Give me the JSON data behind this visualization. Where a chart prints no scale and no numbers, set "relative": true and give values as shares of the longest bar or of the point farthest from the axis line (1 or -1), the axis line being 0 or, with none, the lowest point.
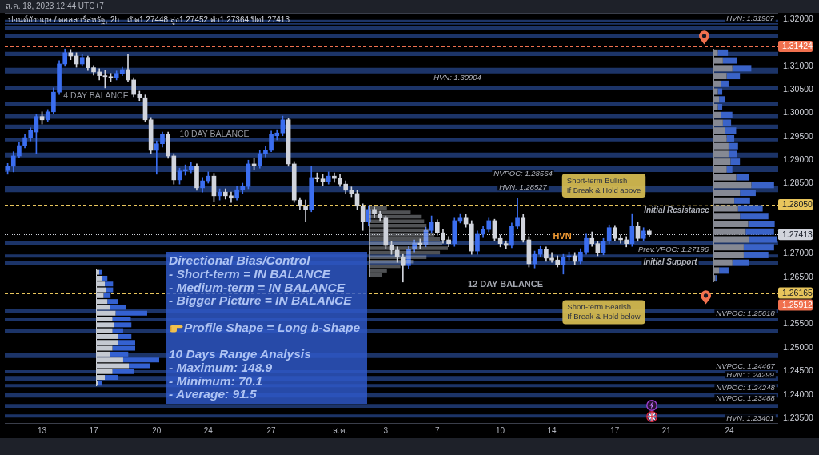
{
  "chart_data": [
    {
      "type": "candlestick",
      "title": "ปอนด์อังกฤษ / ดอลลาร์สหรัฐ, 2h",
      "subtitle": "เปิด1.27448 สูง1.27452 ต่ำ1.27364 ปิด1.27413",
      "categories": [
        null,
        null,
        null,
        null,
        null,
        null,
        "13",
        null,
        null,
        null,
        null,
        null,
        null,
        null,
        null,
        "17",
        null,
        null,
        null,
        null,
        null,
        null,
        null,
        null,
        null,
        null,
        "20",
        null,
        null,
        null,
        null,
        null,
        null,
        null,
        null,
        "24",
        null,
        null,
        null,
        null,
        null,
        null,
        null,
        null,
        null,
        null,
        "27",
        null,
        null,
        null,
        null,
        null,
        null,
        null,
        null,
        null,
        null,
        null,
        "ส.ค.",
        null,
        null,
        null,
        null,
        null,
        null,
        null,
        "3",
        null,
        null,
        null,
        null,
        null,
        null,
        null,
        null,
        "7",
        null,
        null,
        null,
        null,
        null,
        null,
        null,
        null,
        null,
        null,
        "10",
        null,
        null,
        null,
        null,
        null,
        null,
        null,
        null,
        "14",
        null,
        null,
        null,
        null,
        null,
        null,
        null,
        null,
        null,
        null,
        "17",
        null,
        null,
        null,
        null,
        null,
        null,
        null,
        null,
        "21",
        null,
        null,
        null,
        null,
        null,
        null,
        null,
        null,
        null,
        null,
        "24",
        null,
        null,
        null,
        null,
        null,
        null,
        null,
        null
      ],
      "ohlc": [
        [
          1.2878,
          1.2893,
          1.287,
          1.2887
        ],
        [
          1.2887,
          1.2918,
          1.2875,
          1.2909
        ],
        [
          1.2909,
          1.2938,
          1.2906,
          1.2931
        ],
        [
          1.2931,
          1.2955,
          1.2926,
          1.2948
        ],
        [
          1.2948,
          1.2969,
          1.2941,
          1.2964
        ],
        [
          1.296,
          1.2998,
          1.2914,
          1.2993
        ],
        [
          1.2993,
          1.3003,
          1.2977,
          1.2986
        ],
        [
          1.2986,
          1.3008,
          1.2982,
          1.3003
        ],
        [
          1.3003,
          1.3054,
          1.2999,
          1.3045
        ],
        [
          1.3045,
          1.3112,
          1.304,
          1.3105
        ],
        [
          1.3105,
          1.3137,
          1.31,
          1.3129
        ],
        [
          1.3129,
          1.3136,
          1.3114,
          1.3122
        ],
        [
          1.3122,
          1.3129,
          1.3098,
          1.3105
        ],
        [
          1.3105,
          1.3126,
          1.31,
          1.3119
        ],
        [
          1.3119,
          1.3122,
          1.3091,
          1.3097
        ],
        [
          1.3097,
          1.3102,
          1.3081,
          1.3088
        ],
        [
          1.3088,
          1.3095,
          1.3071,
          1.308
        ],
        [
          1.308,
          1.3091,
          1.3054,
          1.3078
        ],
        [
          1.3078,
          1.3085,
          1.3068,
          1.3076
        ],
        [
          1.3076,
          1.309,
          1.3071,
          1.3085
        ],
        [
          1.3085,
          1.3098,
          1.308,
          1.3093
        ],
        [
          1.3093,
          1.3126,
          1.3068,
          1.3071
        ],
        [
          1.3071,
          1.3076,
          1.3035,
          1.304
        ],
        [
          1.304,
          1.3047,
          1.3027,
          1.3033
        ],
        [
          1.3033,
          1.3039,
          1.2981,
          1.2986
        ],
        [
          1.2986,
          1.2991,
          1.2914,
          1.2921
        ],
        [
          1.2921,
          1.2941,
          1.287,
          1.2935
        ],
        [
          1.2935,
          1.296,
          1.2928,
          1.2955
        ],
        [
          1.2955,
          1.296,
          1.2904,
          1.2909
        ],
        [
          1.2909,
          1.2914,
          1.2849,
          1.2858
        ],
        [
          1.2858,
          1.2883,
          1.2849,
          1.2877
        ],
        [
          1.2877,
          1.289,
          1.2868,
          1.288
        ],
        [
          1.288,
          1.2895,
          1.2873,
          1.2887
        ],
        [
          1.2887,
          1.2892,
          1.2836,
          1.2841
        ],
        [
          1.2841,
          1.2863,
          1.2832,
          1.2856
        ],
        [
          1.2856,
          1.2875,
          1.2851,
          1.2866
        ],
        [
          1.2866,
          1.2872,
          1.2812,
          1.2824
        ],
        [
          1.2824,
          1.2839,
          1.2815,
          1.2832
        ],
        [
          1.2832,
          1.2839,
          1.2817,
          1.2824
        ],
        [
          1.2824,
          1.2832,
          1.281,
          1.2819
        ],
        [
          1.2819,
          1.2844,
          1.2815,
          1.2837
        ],
        [
          1.2837,
          1.2851,
          1.2829,
          1.2844
        ],
        [
          1.2844,
          1.29,
          1.2839,
          1.2892
        ],
        [
          1.2892,
          1.2904,
          1.288,
          1.2888
        ],
        [
          1.2888,
          1.2921,
          1.2883,
          1.2914
        ],
        [
          1.2914,
          1.2929,
          1.2907,
          1.2921
        ],
        [
          1.2921,
          1.2962,
          1.2918,
          1.2955
        ],
        [
          1.2952,
          1.2965,
          1.2943,
          1.2958
        ],
        [
          1.2958,
          1.2994,
          1.2952,
          1.2986
        ],
        [
          1.2986,
          1.2989,
          1.2887,
          1.2892
        ],
        [
          1.2892,
          1.2897,
          1.281,
          1.2815
        ],
        [
          1.2815,
          1.282,
          1.2795,
          1.2802
        ],
        [
          1.2802,
          1.2815,
          1.2768,
          1.2795
        ],
        [
          1.2795,
          1.2887,
          1.279,
          1.2863
        ],
        [
          1.2863,
          1.2873,
          1.2853,
          1.286
        ],
        [
          1.286,
          1.287,
          1.2846,
          1.2854
        ],
        [
          1.2854,
          1.2875,
          1.2849,
          1.2866
        ],
        [
          1.2866,
          1.2873,
          1.2853,
          1.2861
        ],
        [
          1.2861,
          1.287,
          1.2844,
          1.2849
        ],
        [
          1.2849,
          1.2856,
          1.2829,
          1.2836
        ],
        [
          1.2836,
          1.2843,
          1.2822,
          1.2829
        ],
        [
          1.2829,
          1.2836,
          1.2795,
          1.2802
        ],
        [
          1.2802,
          1.2807,
          1.275,
          1.2768
        ],
        [
          1.2768,
          1.2803,
          1.2761,
          1.2795
        ],
        [
          1.2795,
          1.28,
          1.2778,
          1.2785
        ],
        [
          1.2785,
          1.2791,
          1.2771,
          1.2778
        ],
        [
          1.2778,
          1.2781,
          1.2711,
          1.2718
        ],
        [
          1.2718,
          1.2727,
          1.2699,
          1.2708
        ],
        [
          1.2708,
          1.2715,
          1.2682,
          1.2693
        ],
        [
          1.2693,
          1.2699,
          1.264,
          1.2675
        ],
        [
          1.2675,
          1.2716,
          1.2669,
          1.271
        ],
        [
          1.271,
          1.273,
          1.2704,
          1.2723
        ],
        [
          1.2723,
          1.2732,
          1.271,
          1.272
        ],
        [
          1.272,
          1.2757,
          1.2715,
          1.275
        ],
        [
          1.275,
          1.2781,
          1.2744,
          1.2768
        ],
        [
          1.2768,
          1.2773,
          1.274,
          1.2745
        ],
        [
          1.2745,
          1.2752,
          1.2723,
          1.273
        ],
        [
          1.273,
          1.2737,
          1.2715,
          1.2722
        ],
        [
          1.2722,
          1.2778,
          1.2716,
          1.2771
        ],
        [
          1.2771,
          1.2786,
          1.2766,
          1.2778
        ],
        [
          1.2778,
          1.2785,
          1.2757,
          1.2764
        ],
        [
          1.2764,
          1.2771,
          1.2699,
          1.2706
        ],
        [
          1.2706,
          1.2749,
          1.2699,
          1.2742
        ],
        [
          1.2742,
          1.2759,
          1.2735,
          1.2752
        ],
        [
          1.2752,
          1.2778,
          1.2747,
          1.2771
        ],
        [
          1.2771,
          1.2774,
          1.2728,
          1.2733
        ],
        [
          1.2733,
          1.274,
          1.2715,
          1.2722
        ],
        [
          1.2722,
          1.2728,
          1.2711,
          1.2718
        ],
        [
          1.2718,
          1.2766,
          1.2713,
          1.2759
        ],
        [
          1.2759,
          1.2819,
          1.2754,
          1.2778
        ],
        [
          1.2778,
          1.2785,
          1.2725,
          1.273
        ],
        [
          1.273,
          1.2737,
          1.2672,
          1.2679
        ],
        [
          1.2679,
          1.2706,
          1.267,
          1.2699
        ],
        [
          1.2699,
          1.2716,
          1.2693,
          1.271
        ],
        [
          1.271,
          1.2715,
          1.2684,
          1.2691
        ],
        [
          1.2691,
          1.2703,
          1.2682,
          1.2687
        ],
        [
          1.2687,
          1.2696,
          1.2672,
          1.2677
        ],
        [
          1.2677,
          1.2699,
          1.2657,
          1.2693
        ],
        [
          1.2693,
          1.2704,
          1.2687,
          1.2696
        ],
        [
          1.2696,
          1.2703,
          1.2677,
          1.2684
        ],
        [
          1.2684,
          1.2711,
          1.2679,
          1.2704
        ],
        [
          1.2704,
          1.2742,
          1.2699,
          1.2733
        ],
        [
          1.2733,
          1.2747,
          1.2716,
          1.2722
        ],
        [
          1.2722,
          1.2727,
          1.2696,
          1.2703
        ],
        [
          1.2703,
          1.2733,
          1.2698,
          1.2727
        ],
        [
          1.2727,
          1.2762,
          1.2722,
          1.2756
        ],
        [
          1.2756,
          1.2761,
          1.2727,
          1.2733
        ],
        [
          1.2733,
          1.274,
          1.2723,
          1.273
        ],
        [
          1.273,
          1.2737,
          1.2715,
          1.2722
        ],
        [
          1.2722,
          1.2786,
          1.2716,
          1.2759
        ],
        [
          1.2759,
          1.2768,
          1.2727,
          1.2733
        ],
        [
          1.2733,
          1.2756,
          1.2728,
          1.2749
        ],
        [
          1.2749,
          1.2752,
          1.2736,
          1.27413
        ],
        null,
        null,
        null,
        null,
        null,
        null,
        null,
        null,
        null,
        null,
        null,
        null,
        null,
        null,
        null,
        null,
        null,
        null,
        null,
        null,
        null,
        null
      ],
      "colors": [
        "#3b6ef0",
        "#3b6ef0",
        "#3b6ef0",
        "#3b6ef0",
        "#3b6ef0",
        "#3b6ef0",
        "#d1d4dc",
        "#3b6ef0",
        "#3b6ef0",
        "#3b6ef0",
        "#3b6ef0",
        "#d1d4dc",
        "#d1d4dc",
        "#3b6ef0",
        "#d1d4dc",
        "#d1d4dc",
        "#d1d4dc",
        "#d1d4dc",
        "#d1d4dc",
        "#3b6ef0",
        "#3b6ef0",
        "#d1d4dc",
        "#d1d4dc",
        "#d1d4dc",
        "#d1d4dc",
        "#d1d4dc",
        "#3b6ef0",
        "#3b6ef0",
        "#d1d4dc",
        "#d1d4dc",
        "#3b6ef0",
        "#3b6ef0",
        "#3b6ef0",
        "#d1d4dc",
        "#3b6ef0",
        "#3b6ef0",
        "#d1d4dc",
        "#3b6ef0",
        "#d1d4dc",
        "#d1d4dc",
        "#3b6ef0",
        "#3b6ef0",
        "#3b6ef0",
        "#d1d4dc",
        "#3b6ef0",
        "#3b6ef0",
        "#3b6ef0",
        "#3b6ef0",
        "#3b6ef0",
        "#d1d4dc",
        "#d1d4dc",
        "#d1d4dc",
        "#d1d4dc",
        "#3b6ef0",
        "#d1d4dc",
        "#d1d4dc",
        "#3b6ef0",
        "#d1d4dc",
        "#d1d4dc",
        "#d1d4dc",
        "#d1d4dc",
        "#d1d4dc",
        "#d1d4dc",
        "#3b6ef0",
        "#d1d4dc",
        "#d1d4dc",
        "#d1d4dc",
        "#d1d4dc",
        "#d1d4dc",
        "#d1d4dc",
        "#3b6ef0",
        "#3b6ef0",
        "#d1d4dc",
        "#3b6ef0",
        "#3b6ef0",
        "#d1d4dc",
        "#d1d4dc",
        "#d1d4dc",
        "#3b6ef0",
        "#3b6ef0",
        "#d1d4dc",
        "#d1d4dc",
        "#3b6ef0",
        "#3b6ef0",
        "#3b6ef0",
        "#d1d4dc",
        "#d1d4dc",
        "#d1d4dc",
        "#3b6ef0",
        "#3b6ef0",
        "#d1d4dc",
        "#d1d4dc",
        "#3b6ef0",
        "#3b6ef0",
        "#d1d4dc",
        "#d1d4dc",
        "#d1d4dc",
        "#3b6ef0",
        "#3b6ef0",
        "#d1d4dc",
        "#3b6ef0",
        "#3b6ef0",
        "#d1d4dc",
        "#d1d4dc",
        "#3b6ef0",
        "#3b6ef0",
        "#d1d4dc",
        "#d1d4dc",
        "#d1d4dc",
        "#3b6ef0",
        "#d1d4dc",
        "#3b6ef0",
        "#d1d4dc",
        null,
        null,
        null,
        null,
        null,
        null,
        null,
        null,
        null,
        null,
        null,
        null,
        null,
        null,
        null,
        null,
        null,
        null,
        null,
        null,
        null,
        null
      ],
      "ylim": [
        1.2338,
        1.3214
      ],
      "yticks": [
        {
          "value": 1.32,
          "label": "1.32000"
        },
        {
          "value": 1.31,
          "label": "1.31000"
        },
        {
          "value": 1.305,
          "label": "1.30500"
        },
        {
          "value": 1.3,
          "label": "1.30000"
        },
        {
          "value": 1.295,
          "label": "1.29500"
        },
        {
          "value": 1.29,
          "label": "1.29000"
        },
        {
          "value": 1.285,
          "label": "1.28500"
        },
        {
          "value": 1.27,
          "label": "1.27000"
        },
        {
          "value": 1.265,
          "label": "1.26500"
        },
        {
          "value": 1.255,
          "label": "1.25500"
        },
        {
          "value": 1.25,
          "label": "1.25000"
        },
        {
          "value": 1.245,
          "label": "1.24500"
        },
        {
          "value": 1.24,
          "label": "1.24000"
        },
        {
          "value": 1.235,
          "label": "1.23500"
        }
      ],
      "bands": [
        {
          "axis": "y",
          "from": 1.3195,
          "to": 1.3199,
          "color": "#1c3468"
        },
        {
          "axis": "y",
          "from": 1.3189,
          "to": 1.3192,
          "color": "#1c3468"
        },
        {
          "axis": "y",
          "from": 1.3177,
          "to": 1.3185,
          "color": "#1c3468"
        },
        {
          "axis": "y",
          "from": 1.316,
          "to": 1.3168,
          "color": "#1c3468"
        },
        {
          "axis": "y",
          "from": 1.3122,
          "to": 1.3131,
          "color": "#1c3468"
        },
        {
          "axis": "y",
          "from": 1.3085,
          "to": 1.3097,
          "color": "#1c3468"
        },
        {
          "axis": "y",
          "from": 1.3049,
          "to": 1.3059,
          "color": "#1c3468"
        },
        {
          "axis": "y",
          "from": 1.3015,
          "to": 1.3025,
          "color": "#1c3468"
        },
        {
          "axis": "y",
          "from": 1.2988,
          "to": 1.2998,
          "color": "#1c3468"
        },
        {
          "axis": "y",
          "from": 1.2967,
          "to": 1.2976,
          "color": "#1c3468"
        },
        {
          "axis": "y",
          "from": 1.294,
          "to": 1.2948,
          "color": "#1c3468"
        },
        {
          "axis": "y",
          "from": 1.2906,
          "to": 1.2916,
          "color": "#1c3468"
        },
        {
          "axis": "y",
          "from": 1.2875,
          "to": 1.2887,
          "color": "#1c3468"
        },
        {
          "axis": "y",
          "from": 1.2832,
          "to": 1.2844,
          "color": "#1c3468"
        },
        {
          "axis": "y",
          "from": 1.2718,
          "to": 1.2727,
          "color": "#1c3468"
        },
        {
          "axis": "y",
          "from": 1.2692,
          "to": 1.2699,
          "color": "#1c3468"
        },
        {
          "axis": "y",
          "from": 1.2677,
          "to": 1.2684,
          "color": "#1c3468"
        },
        {
          "axis": "y",
          "from": 1.2575,
          "to": 1.2582,
          "color": "#1c3468"
        },
        {
          "axis": "y",
          "from": 1.2556,
          "to": 1.2563,
          "color": "#1c3468"
        },
        {
          "axis": "y",
          "from": 1.2532,
          "to": 1.2539,
          "color": "#1c3468"
        },
        {
          "axis": "y",
          "from": 1.2478,
          "to": 1.2488,
          "color": "#1c3468"
        },
        {
          "axis": "y",
          "from": 1.2447,
          "to": 1.2452,
          "color": "#1c3468"
        },
        {
          "axis": "y",
          "from": 1.243,
          "to": 1.244,
          "color": "#1c3468"
        },
        {
          "axis": "y",
          "from": 1.2416,
          "to": 1.2423,
          "color": "#1c3468"
        },
        {
          "axis": "y",
          "from": 1.2394,
          "to": 1.2403,
          "color": "#1c3468"
        },
        {
          "axis": "y",
          "from": 1.2372,
          "to": 1.238,
          "color": "#1c3468"
        },
        {
          "axis": "y",
          "from": 1.2351,
          "to": 1.2358,
          "color": "#1c3468"
        }
      ],
      "ref_lines": [
        {
          "axis": "y",
          "value": 1.31424,
          "label": "1.31424",
          "color": "#f0704e",
          "line_style": "dashed"
        },
        {
          "axis": "y",
          "value": 1.2805,
          "label": "1.28050",
          "color": "#e8c55c",
          "line_style": "dashed"
        },
        {
          "axis": "y",
          "value": 1.27413,
          "label": "1.27413",
          "color": "#d1d4dc",
          "line_style": "dotted"
        },
        {
          "axis": "y",
          "value": 1.26165,
          "label": "1.26165",
          "color": "#e8c55c",
          "line_style": "dashed"
        },
        {
          "axis": "y",
          "value": 1.25912,
          "label": "1.25912",
          "color": "#f0704e",
          "line_style": "dashed"
        }
      ],
      "annotations": [
        "ส.ค. 18, 2023 12:44 UTC+7",
        "Directional Bias/Control\n- Short-term = IN BALANCE\n- Medium-term = IN BALANCE\n- Bigger Picture = IN BALANCE\n\nProfile Shape = Long b-Shape\n\n10 Days Range Analysis\n- Maximum: 148.9\n- Minimum: 70.1\n- Average: 91.5",
        "4 DAY BALANCE",
        "10 DAY BALANCE",
        "12 DAY BALANCE",
        "HVN",
        "HVN: 1.31907",
        "HVN: 1.30904",
        "NVPOC: 1.28564",
        "HVN: 1.28527",
        {
          "text": "Short-term Bullish\nIf Break & Hold above",
          "y": 1.2805
        },
        "Initial Resistance",
        "Prev.VPOC: 1.27196",
        "Initial Support",
        {
          "text": "Short-term Bearish\nIf Break & Hold below",
          "y": 1.26165
        },
        "NVPOC: 1.25618",
        "NVPOC: 1.24467",
        "HVN: 1.24299",
        "NVPOC: 1.24248",
        "NVPOC: 1.23488",
        "HVN: 1.23401"
      ]
    },
    {
      "type": "bar",
      "orientation": "horizontal",
      "stacked": true,
      "relative": true,
      "tick_labels": false,
      "categories": [
        null,
        null,
        null,
        null,
        null,
        null,
        null,
        null,
        null,
        null,
        null,
        null,
        null,
        null,
        null,
        null,
        null,
        null,
        null,
        null,
        null,
        null,
        null,
        null,
        null,
        null,
        null,
        null,
        null,
        null
      ],
      "series": [
        {
          "color": "#868993",
          "values": [
            0.07,
            0.15,
            0.3,
            0.21,
            0.12,
            0.07,
            0.09,
            0.07,
            0.12,
            0.15,
            0.18,
            0.21,
            0.24,
            0.24,
            0.27,
            0.21,
            0.36,
            0.6,
            0.42,
            0.33,
            0.39,
            0.42,
            0.55,
            0.51,
            0.57,
            0.48,
            0.48,
            0.3,
            0.09,
            0.03
          ]
        },
        {
          "color": "#3a63c8",
          "values": [
            0.16,
            0.22,
            0.3,
            0.21,
            0.12,
            0.07,
            0.1,
            0.07,
            0.18,
            0.13,
            0.18,
            0.12,
            0.15,
            0.13,
            0.15,
            0.09,
            0.21,
            0.36,
            0.25,
            0.25,
            0.39,
            0.45,
            0.42,
            0.45,
            0.43,
            0.48,
            0.39,
            0.27,
            0.15,
            0.03
          ]
        }
      ]
    },
    {
      "type": "bar",
      "orientation": "horizontal",
      "relative": true,
      "tick_labels": false,
      "categories": [
        null,
        null,
        null,
        null,
        null,
        null,
        null,
        null,
        null,
        null,
        null,
        null,
        null,
        null,
        null,
        null
      ],
      "color": "#c8ccd4",
      "values": [
        0.23,
        0.53,
        0.67,
        0.7,
        0.73,
        0.77,
        0.83,
        0.9,
        0.93,
        1.0,
        0.9,
        0.73,
        0.57,
        0.4,
        0.23,
        0.17
      ]
    },
    {
      "type": "bar",
      "orientation": "horizontal",
      "stacked": true,
      "relative": true,
      "tick_labels": false,
      "categories": [
        null,
        null,
        null,
        null,
        null,
        null,
        null,
        null,
        null,
        null,
        null,
        null,
        null,
        null,
        null,
        null,
        null,
        null,
        null,
        null
      ],
      "series": [
        {
          "color": "#c4c9d1",
          "values": [
            0.05,
            0.1,
            0.14,
            0.16,
            0.12,
            0.18,
            0.22,
            0.31,
            0.26,
            0.29,
            0.26,
            0.35,
            0.35,
            0.26,
            0.22,
            0.43,
            0.52,
            0.26,
            0.14,
            0.03
          ]
        },
        {
          "color": "#3461d1",
          "values": [
            0.04,
            0.08,
            0.13,
            0.11,
            0.11,
            0.17,
            0.25,
            0.5,
            0.29,
            0.27,
            0.17,
            0.21,
            0.27,
            0.36,
            0.29,
            0.57,
            0.34,
            0.34,
            0.21,
            0.06
          ]
        }
      ]
    }
  ]
}
